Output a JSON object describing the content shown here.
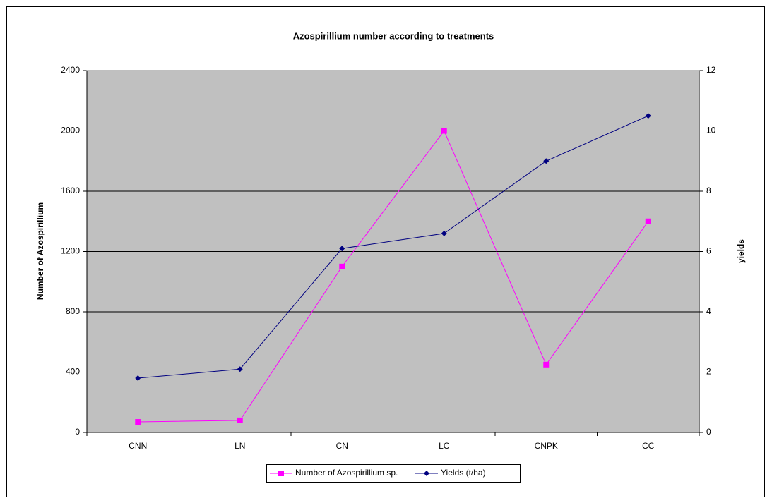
{
  "chart_data": {
    "type": "line",
    "title": "Azospirillium number according to treatments",
    "ylabel": "Number of Azospirillium",
    "y2label": "yields",
    "categories": [
      "CNN",
      "LN",
      "CN",
      "LC",
      "CNPK",
      "CC"
    ],
    "series": [
      {
        "name": "Number of Azospirillium sp.",
        "color": "#ff00ff",
        "marker": "square",
        "values": [
          70,
          80,
          1100,
          2000,
          450,
          1400
        ]
      },
      {
        "name": "Yields (t/ha)",
        "color": "#000080",
        "marker": "diamond",
        "axis": "y2",
        "values": [
          1.8,
          2.1,
          6.1,
          6.6,
          9.0,
          10.5
        ]
      }
    ],
    "ylim": [
      0,
      2400
    ],
    "yticks": [
      0,
      400,
      800,
      1200,
      1600,
      2000,
      2400
    ],
    "y2lim": [
      0,
      12
    ],
    "y2ticks": [
      0,
      2,
      4,
      6,
      8,
      10,
      12
    ],
    "grid": true,
    "legend": "bottom",
    "plot_background": "#c0c0c0"
  }
}
